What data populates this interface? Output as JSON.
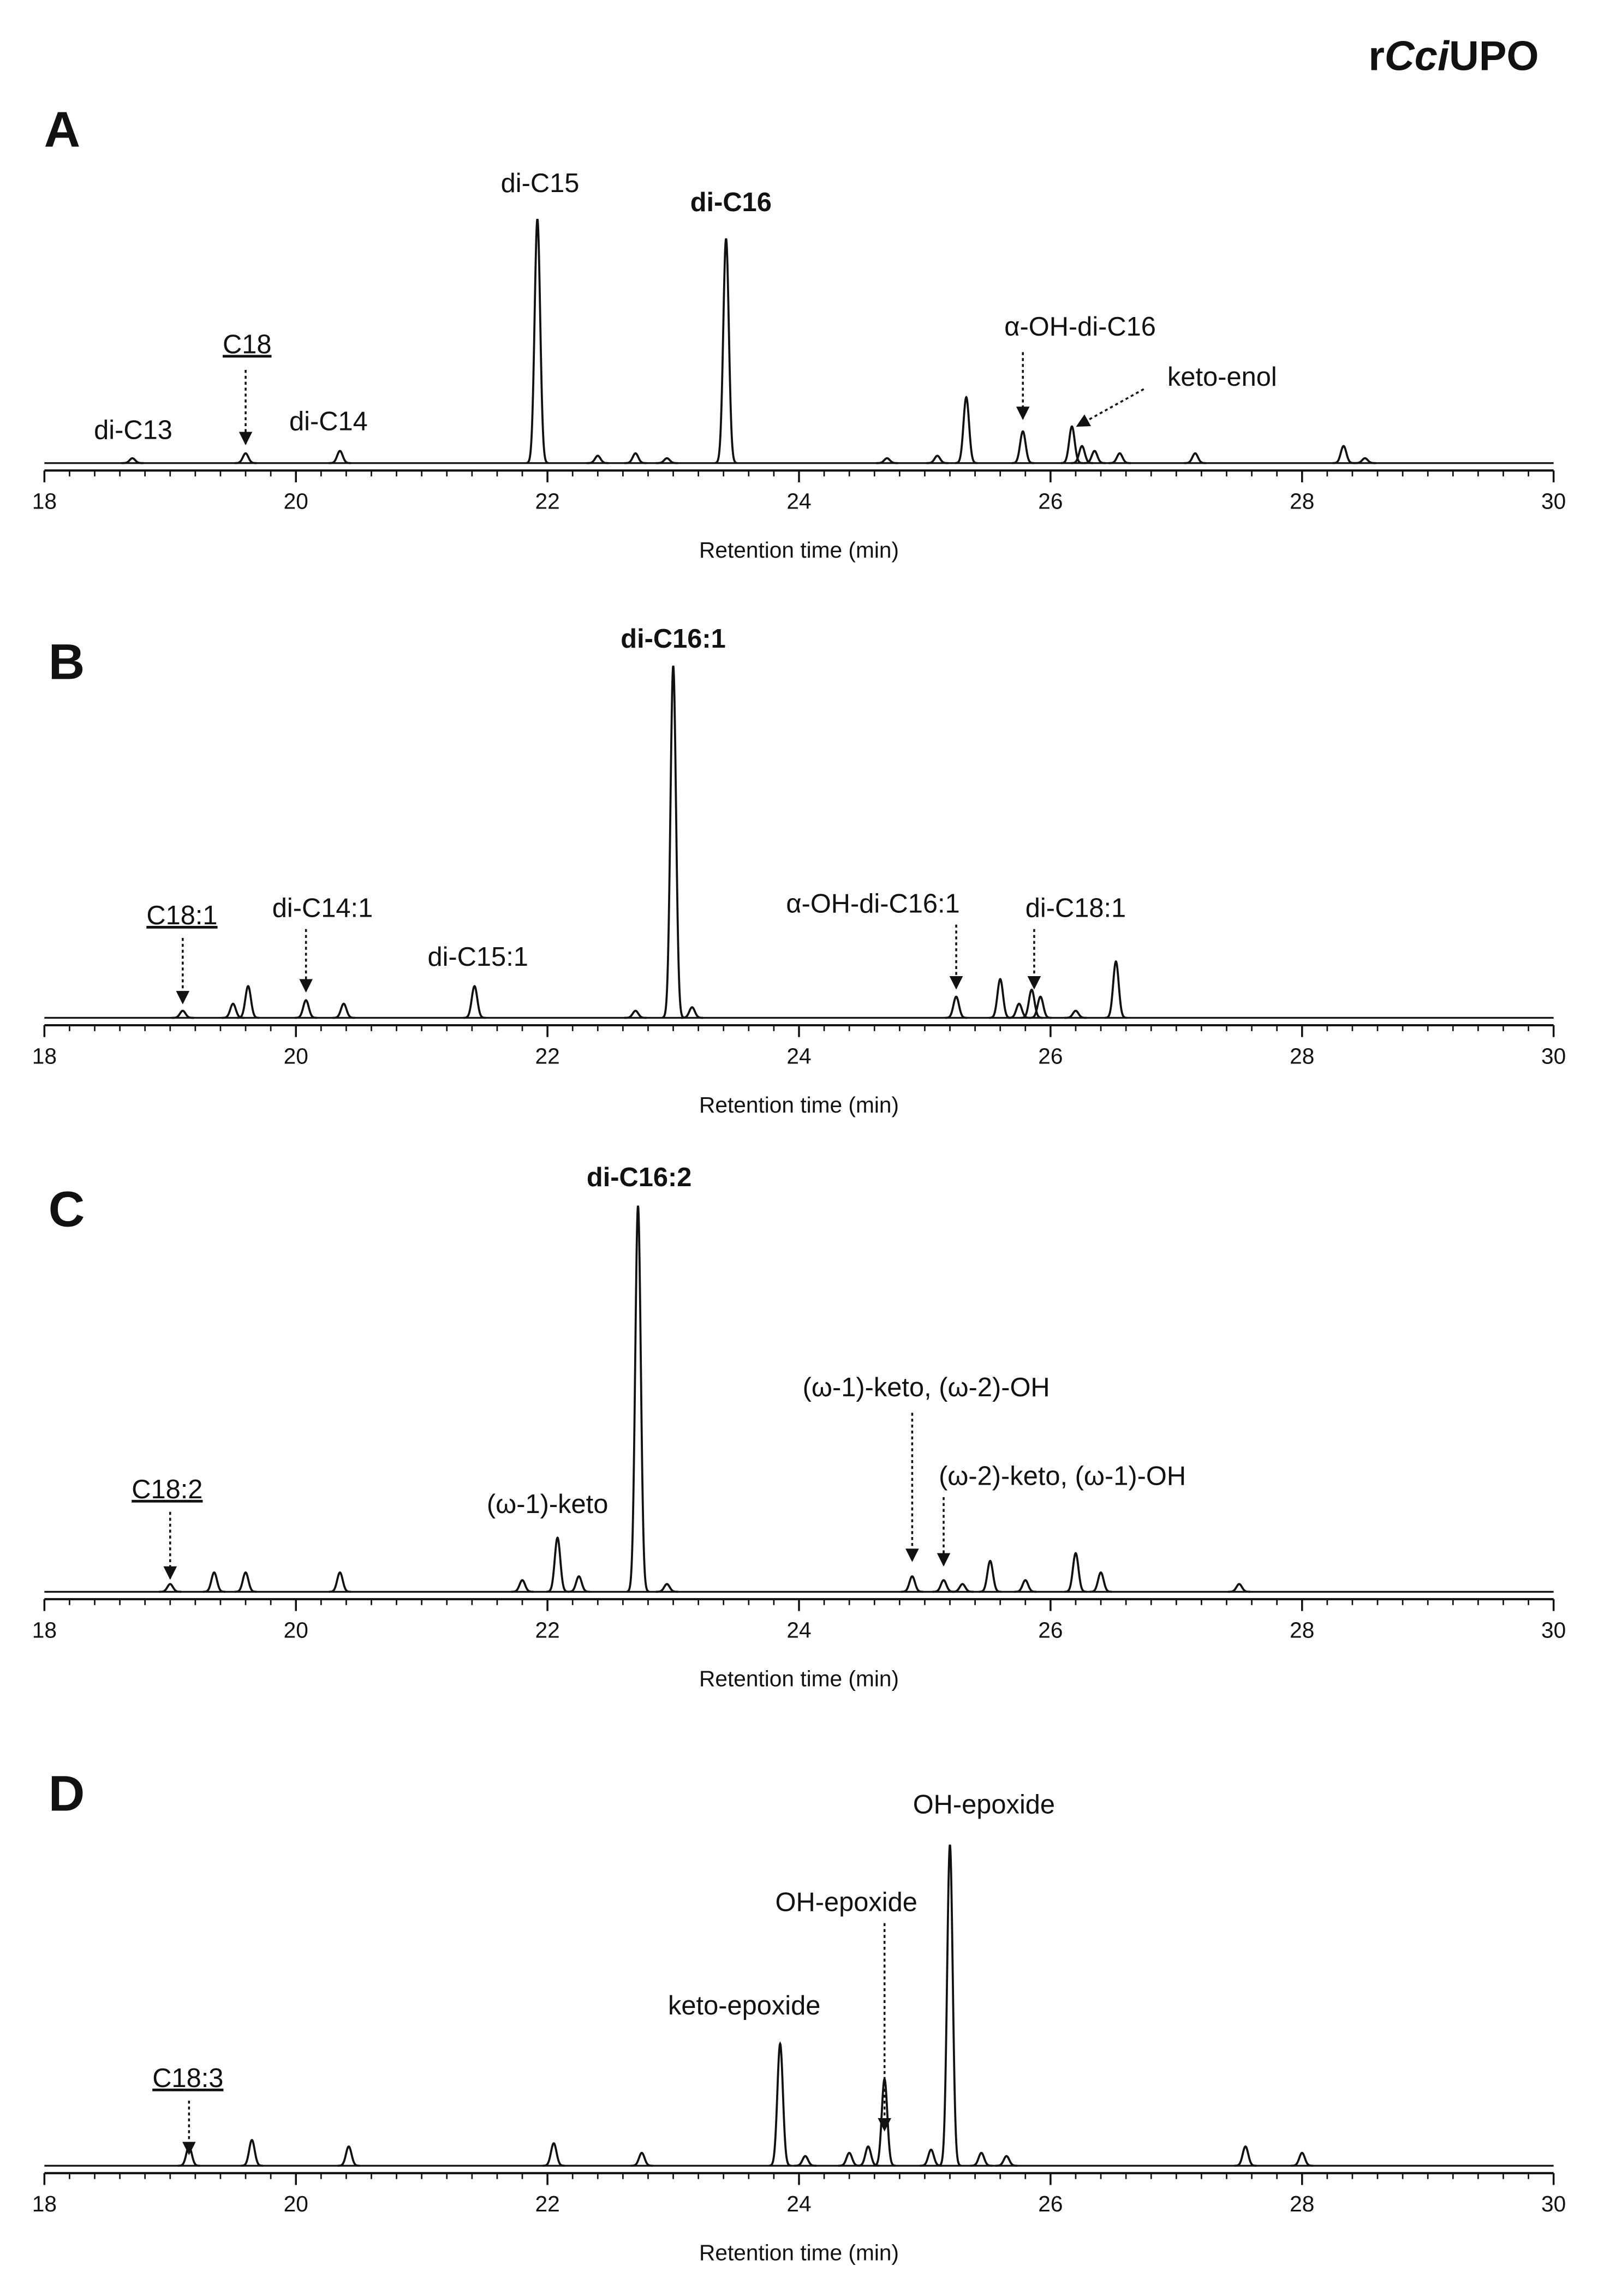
{
  "title": [
    "r",
    "Cci",
    "UPO"
  ],
  "chart_data": [
    {
      "type": "chromatogram",
      "label": "A",
      "xlabel": "Retention time (min)",
      "xlim": [
        18,
        30
      ],
      "xticks": [
        18,
        20,
        22,
        24,
        26,
        28,
        30
      ],
      "minor_xticks": [
        18.2,
        18.4,
        18.6,
        18.8,
        19.0,
        19.2,
        19.4,
        19.6,
        19.8,
        20.2,
        20.4,
        20.6,
        20.8,
        21.0,
        21.2,
        21.4,
        21.6,
        21.8,
        22.2,
        22.4,
        22.6,
        22.8,
        23.0,
        23.2,
        23.4,
        23.6,
        23.8,
        24.2,
        24.4,
        24.6,
        24.8,
        25.0,
        25.2,
        25.4,
        25.6,
        25.8,
        26.2,
        26.4,
        26.6,
        26.8,
        27.0,
        27.2,
        27.4,
        27.6,
        27.8,
        28.2,
        28.4,
        28.6,
        28.8,
        29.0,
        29.2,
        29.4,
        29.6,
        29.8
      ],
      "peaks": {
        "x": [
          18.7,
          19.6,
          20.35,
          21.92,
          22.4,
          22.7,
          22.95,
          23.42,
          24.7,
          25.1,
          25.33,
          25.78,
          26.17,
          26.25,
          26.35,
          26.55,
          27.15,
          28.33,
          28.5
        ],
        "values": [
          2,
          4,
          5,
          100,
          3,
          4,
          2,
          92,
          2,
          3,
          27,
          13,
          15,
          7,
          5,
          4,
          4,
          7,
          2
        ]
      },
      "annotations": [
        {
          "text": "di-C13",
          "x": 18.7
        },
        {
          "text": "C18",
          "x": 19.6,
          "underline": true,
          "arrow": true
        },
        {
          "text": "di-C14",
          "x": 20.35
        },
        {
          "text": "di-C15",
          "x": 21.92
        },
        {
          "text": "di-C16",
          "x": 23.42,
          "bold": true
        },
        {
          "text": "α-OH-di-C16",
          "x": 25.78,
          "arrow": true
        },
        {
          "text": "keto-enol",
          "x": 26.17,
          "arrow": true
        }
      ]
    },
    {
      "type": "chromatogram",
      "label": "B",
      "xlabel": "Retention time (min)",
      "xlim": [
        18,
        30
      ],
      "xticks": [
        18,
        20,
        22,
        24,
        26,
        28,
        30
      ],
      "minor_xticks": [
        18.2,
        18.4,
        18.6,
        18.8,
        19.0,
        19.2,
        19.4,
        19.6,
        19.8,
        20.2,
        20.4,
        20.6,
        20.8,
        21.0,
        21.2,
        21.4,
        21.6,
        21.8,
        22.2,
        22.4,
        22.6,
        22.8,
        23.0,
        23.2,
        23.4,
        23.6,
        23.8,
        24.2,
        24.4,
        24.6,
        24.8,
        25.0,
        25.2,
        25.4,
        25.6,
        25.8,
        26.2,
        26.4,
        26.6,
        26.8,
        27.0,
        27.2,
        27.4,
        27.6,
        27.8,
        28.2,
        28.4,
        28.6,
        28.8,
        29.0,
        29.2,
        29.4,
        29.6,
        29.8
      ],
      "peaks": {
        "x": [
          19.1,
          19.5,
          19.62,
          20.08,
          20.38,
          21.42,
          22.7,
          23.0,
          23.15,
          25.25,
          25.6,
          25.75,
          25.85,
          25.92,
          26.2,
          26.52
        ],
        "values": [
          2,
          4,
          9,
          5,
          4,
          9,
          2,
          100,
          3,
          6,
          11,
          4,
          8,
          6,
          2,
          16
        ]
      },
      "annotations": [
        {
          "text": "C18:1",
          "x": 19.1,
          "underline": true,
          "arrow": true
        },
        {
          "text": "di-C14:1",
          "x": 20.08,
          "arrow": true
        },
        {
          "text": "di-C15:1",
          "x": 21.42
        },
        {
          "text": "di-C16:1",
          "x": 23.0,
          "bold": true
        },
        {
          "text": "α-OH-di-C16:1",
          "x": 25.25,
          "arrow": true
        },
        {
          "text": "di-C18:1",
          "x": 25.87,
          "arrow": true
        }
      ]
    },
    {
      "type": "chromatogram",
      "label": "C",
      "xlabel": "Retention time (min)",
      "xlim": [
        18,
        30
      ],
      "xticks": [
        18,
        20,
        22,
        24,
        26,
        28,
        30
      ],
      "minor_xticks": [
        18.2,
        18.4,
        18.6,
        18.8,
        19.0,
        19.2,
        19.4,
        19.6,
        19.8,
        20.2,
        20.4,
        20.6,
        20.8,
        21.0,
        21.2,
        21.4,
        21.6,
        21.8,
        22.2,
        22.4,
        22.6,
        22.8,
        23.0,
        23.2,
        23.4,
        23.6,
        23.8,
        24.2,
        24.4,
        24.6,
        24.8,
        25.0,
        25.2,
        25.4,
        25.6,
        25.8,
        26.2,
        26.4,
        26.6,
        26.8,
        27.0,
        27.2,
        27.4,
        27.6,
        27.8,
        28.2,
        28.4,
        28.6,
        28.8,
        29.0,
        29.2,
        29.4,
        29.6,
        29.8
      ],
      "peaks": {
        "x": [
          19.0,
          19.35,
          19.6,
          20.35,
          21.8,
          22.08,
          22.25,
          22.72,
          22.95,
          24.9,
          25.15,
          25.3,
          25.52,
          25.8,
          26.2,
          26.4,
          27.5
        ],
        "values": [
          2,
          5,
          5,
          5,
          3,
          14,
          4,
          100,
          2,
          4,
          3,
          2,
          8,
          3,
          10,
          5,
          2
        ]
      },
      "annotations": [
        {
          "text": "C18:2",
          "x": 19.0,
          "underline": true,
          "arrow": true
        },
        {
          "text": "(ω-1)-keto",
          "x": 22.08
        },
        {
          "text": "di-C16:2",
          "x": 22.72,
          "bold": true
        },
        {
          "text": "(ω-1)-keto, (ω-2)-OH",
          "x": 24.9,
          "arrow": true
        },
        {
          "text": "(ω-2)-keto, (ω-1)-OH",
          "x": 25.15,
          "arrow": true
        }
      ]
    },
    {
      "type": "chromatogram",
      "label": "D",
      "xlabel": "Retention time (min)",
      "xlim": [
        18,
        30
      ],
      "xticks": [
        18,
        20,
        22,
        24,
        26,
        28,
        30
      ],
      "minor_xticks": [
        18.2,
        18.4,
        18.6,
        18.8,
        19.0,
        19.2,
        19.4,
        19.6,
        19.8,
        20.2,
        20.4,
        20.6,
        20.8,
        21.0,
        21.2,
        21.4,
        21.6,
        21.8,
        22.2,
        22.4,
        22.6,
        22.8,
        23.0,
        23.2,
        23.4,
        23.6,
        23.8,
        24.2,
        24.4,
        24.6,
        24.8,
        25.0,
        25.2,
        25.4,
        25.6,
        25.8,
        26.2,
        26.4,
        26.6,
        26.8,
        27.0,
        27.2,
        27.4,
        27.6,
        27.8,
        28.2,
        28.4,
        28.6,
        28.8,
        29.0,
        29.2,
        29.4,
        29.6,
        29.8
      ],
      "peaks": {
        "x": [
          19.15,
          19.65,
          20.42,
          22.05,
          22.75,
          23.85,
          24.05,
          24.4,
          24.55,
          24.68,
          25.05,
          25.2,
          25.45,
          25.65,
          27.55,
          28.0
        ],
        "values": [
          6,
          8,
          6,
          7,
          4,
          38,
          3,
          4,
          6,
          27,
          5,
          100,
          4,
          3,
          6,
          4
        ]
      },
      "annotations": [
        {
          "text": "C18:3",
          "x": 19.15,
          "underline": true,
          "arrow": true
        },
        {
          "text": "keto-epoxide",
          "x": 23.85
        },
        {
          "text": "OH-epoxide",
          "x": 24.68,
          "arrow": true
        },
        {
          "text": "OH-epoxide",
          "x": 25.2
        }
      ]
    }
  ]
}
